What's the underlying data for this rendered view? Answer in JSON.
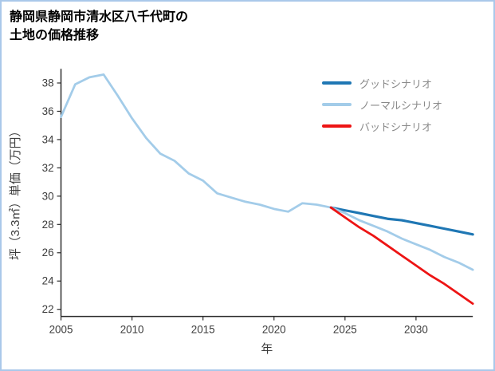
{
  "header": {
    "title_line1": "静岡県静岡市清水区八千代町の",
    "title_line2": "土地の価格推移"
  },
  "colors": {
    "frame_border": "#aac8ea",
    "background": "#ffffff",
    "axis": "#2b2b2b",
    "tick_label": "#3c3c3c",
    "axis_title": "#3c3c3c",
    "legend_label": "#8a8a8a",
    "scenario_good": "#1f77b4",
    "scenario_normal": "#a3cce9",
    "scenario_bad": "#ed1414"
  },
  "chart_data": {
    "type": "line",
    "title": "静岡県静岡市清水区八千代町の土地の価格推移",
    "xlabel": "年",
    "ylabel": "坪（3.3㎡）単価（万円）",
    "xlim": [
      2005,
      2034
    ],
    "ylim": [
      21.5,
      39
    ],
    "xticks": [
      2005,
      2010,
      2015,
      2020,
      2025,
      2030
    ],
    "yticks": [
      22,
      24,
      26,
      28,
      30,
      32,
      34,
      36,
      38
    ],
    "grid": false,
    "legend_position": "top-right",
    "series": [
      {
        "key": "good",
        "name": "グッドシナリオ",
        "color": "#1f77b4",
        "width": 3.2,
        "in_legend": true,
        "x": [
          2024,
          2025,
          2026,
          2027,
          2028,
          2029,
          2030,
          2031,
          2032,
          2033,
          2034
        ],
        "values": [
          29.2,
          29.0,
          28.8,
          28.6,
          28.4,
          28.3,
          28.1,
          27.9,
          27.7,
          27.5,
          27.3
        ]
      },
      {
        "key": "normal",
        "name": "ノーマルシナリオ",
        "color": "#a3cce9",
        "width": 2.8,
        "in_legend": true,
        "x": [
          2005,
          2006,
          2007,
          2008,
          2009,
          2010,
          2011,
          2012,
          2013,
          2014,
          2015,
          2016,
          2017,
          2018,
          2019,
          2020,
          2021,
          2022,
          2023,
          2024,
          2025,
          2026,
          2027,
          2028,
          2029,
          2030,
          2031,
          2032,
          2033,
          2034
        ],
        "values": [
          35.6,
          37.9,
          38.4,
          38.6,
          37.1,
          35.5,
          34.1,
          33.0,
          32.5,
          31.6,
          31.1,
          30.2,
          29.9,
          29.6,
          29.4,
          29.1,
          28.9,
          29.5,
          29.4,
          29.2,
          28.8,
          28.3,
          27.9,
          27.5,
          27.0,
          26.6,
          26.2,
          25.7,
          25.3,
          24.8
        ]
      },
      {
        "key": "bad",
        "name": "バッドシナリオ",
        "color": "#ed1414",
        "width": 2.8,
        "in_legend": true,
        "x": [
          2024,
          2025,
          2026,
          2027,
          2028,
          2029,
          2030,
          2031,
          2032,
          2033,
          2034
        ],
        "values": [
          29.2,
          28.5,
          27.8,
          27.2,
          26.5,
          25.8,
          25.1,
          24.4,
          23.8,
          23.1,
          22.4
        ]
      }
    ]
  }
}
